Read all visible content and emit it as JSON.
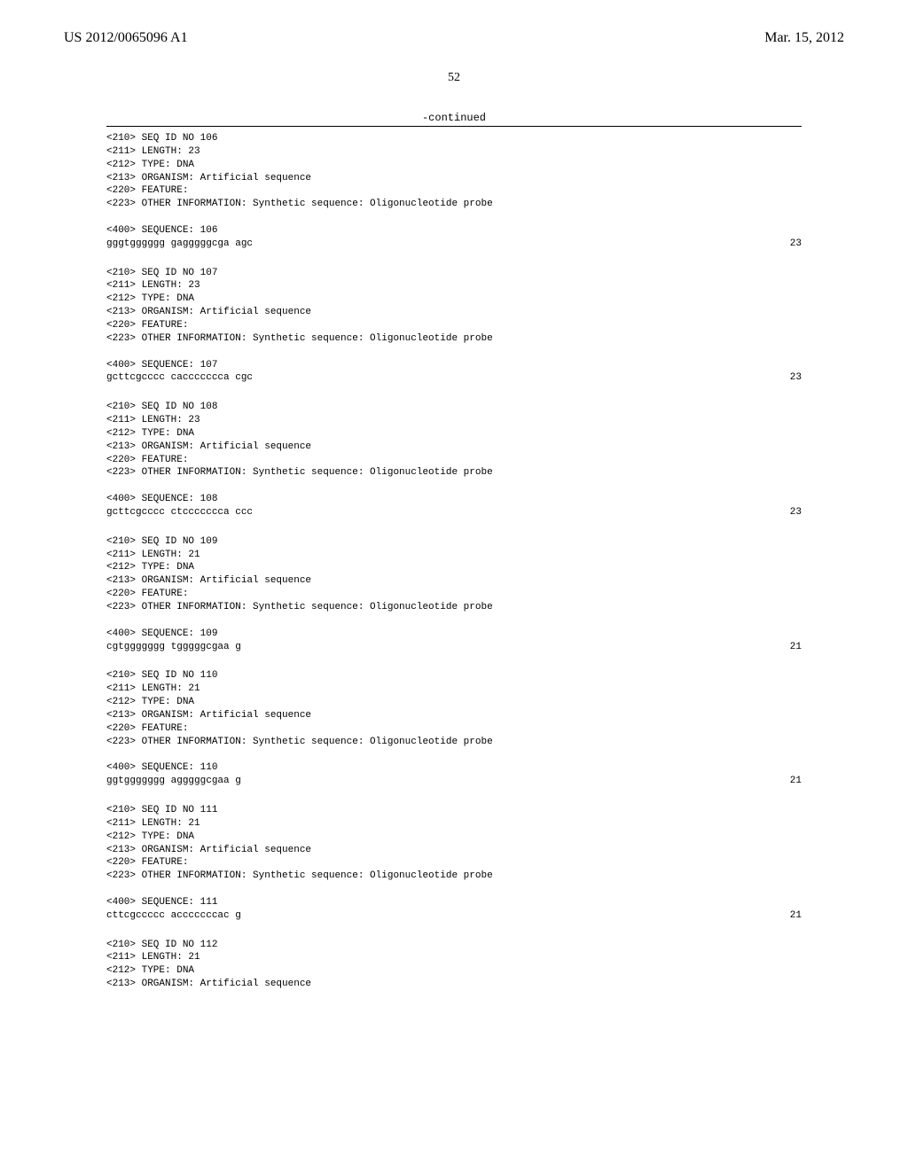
{
  "header": {
    "pub_number": "US 2012/0065096 A1",
    "pub_date": "Mar. 15, 2012",
    "page_number": "52",
    "continued_label": "-continued"
  },
  "entries": [
    {
      "id": "106",
      "length": "23",
      "type": "DNA",
      "organism": "Artificial sequence",
      "other_info": "Synthetic sequence: Oligonucleotide probe",
      "sequence_label": "106",
      "sequence_text": "gggtgggggg gagggggcga agc",
      "sequence_len": "23"
    },
    {
      "id": "107",
      "length": "23",
      "type": "DNA",
      "organism": "Artificial sequence",
      "other_info": "Synthetic sequence: Oligonucleotide probe",
      "sequence_label": "107",
      "sequence_text": "gcttcgcccc cacccccccа cgc",
      "sequence_len": "23"
    },
    {
      "id": "108",
      "length": "23",
      "type": "DNA",
      "organism": "Artificial sequence",
      "other_info": "Synthetic sequence: Oligonucleotide probe",
      "sequence_label": "108",
      "sequence_text": "gcttcgcccc ctcccccccа ccc",
      "sequence_len": "23"
    },
    {
      "id": "109",
      "length": "21",
      "type": "DNA",
      "organism": "Artificial sequence",
      "other_info": "Synthetic sequence: Oligonucleotide probe",
      "sequence_label": "109",
      "sequence_text": "cgtggggggg tgggggcgaa g",
      "sequence_len": "21"
    },
    {
      "id": "110",
      "length": "21",
      "type": "DNA",
      "organism": "Artificial sequence",
      "other_info": "Synthetic sequence: Oligonucleotide probe",
      "sequence_label": "110",
      "sequence_text": "ggtggggggg agggggcgaa g",
      "sequence_len": "21"
    },
    {
      "id": "111",
      "length": "21",
      "type": "DNA",
      "organism": "Artificial sequence",
      "other_info": "Synthetic sequence: Oligonucleotide probe",
      "sequence_label": "111",
      "sequence_text": "cttcgccccc acccccccac g",
      "sequence_len": "21"
    }
  ],
  "tail": {
    "id": "112",
    "length": "21",
    "type": "DNA",
    "organism": "Artificial sequence"
  },
  "labels": {
    "seq_id": "<210> SEQ ID NO ",
    "length": "<211> LENGTH: ",
    "type": "<212> TYPE: ",
    "organism": "<213> ORGANISM: ",
    "feature": "<220> FEATURE:",
    "other_info": "<223> OTHER INFORMATION: ",
    "sequence": "<400> SEQUENCE: "
  }
}
